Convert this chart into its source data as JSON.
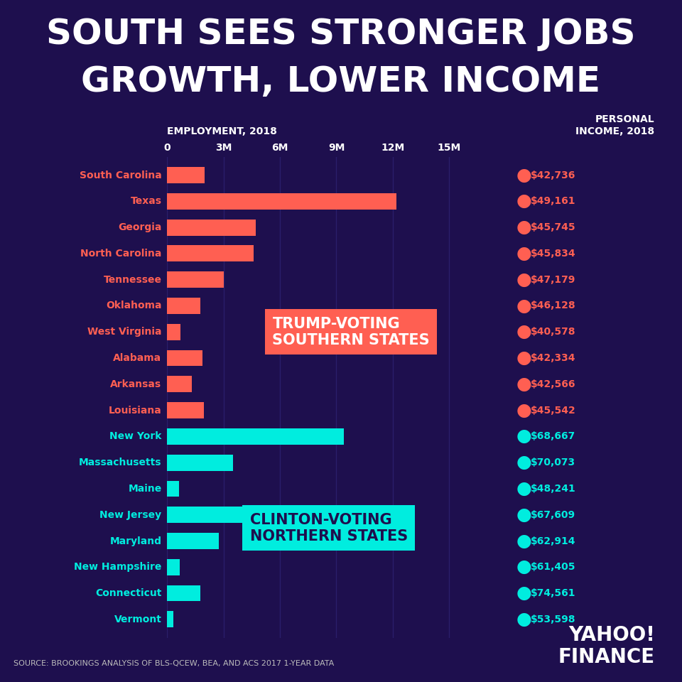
{
  "title_line1": "SOUTH SEES STRONGER JOBS",
  "title_line2": "GROWTH, LOWER INCOME",
  "employment_label": "EMPLOYMENT, 2018",
  "income_label": "PERSONAL\nINCOME, 2018",
  "source": "SOURCE: BROOKINGS ANALYSIS OF BLS-QCEW, BEA, AND ACS 2017 1-YEAR DATA",
  "states": [
    "South Carolina",
    "Texas",
    "Georgia",
    "North Carolina",
    "Tennessee",
    "Oklahoma",
    "West Virginia",
    "Alabama",
    "Arkansas",
    "Louisiana",
    "New York",
    "Massachusetts",
    "Maine",
    "New Jersey",
    "Maryland",
    "New Hampshire",
    "Connecticut",
    "Vermont"
  ],
  "employment": [
    2000000,
    12200000,
    4700000,
    4600000,
    3000000,
    1750000,
    700000,
    1900000,
    1300000,
    1950000,
    9400000,
    3500000,
    620000,
    4100000,
    2750000,
    680000,
    1750000,
    320000
  ],
  "income": [
    42736,
    49161,
    45745,
    45834,
    47179,
    46128,
    40578,
    42334,
    42566,
    45542,
    68667,
    70073,
    48241,
    67609,
    62914,
    61405,
    74561,
    53598
  ],
  "group": [
    "south",
    "south",
    "south",
    "south",
    "south",
    "south",
    "south",
    "south",
    "south",
    "south",
    "north",
    "north",
    "north",
    "north",
    "north",
    "north",
    "north",
    "north"
  ],
  "bar_color_south": "#FF5F52",
  "bar_color_north": "#00EDDF",
  "dot_color_south": "#FF5F52",
  "dot_color_north": "#00EDDF",
  "state_color_south": "#FF5F52",
  "state_color_north": "#00EDDF",
  "income_color_south": "#FF5F52",
  "income_color_north": "#00EDDF",
  "bg_color": "#1E0F4E",
  "title_color": "#FFFFFF",
  "axis_label_color": "#FFFFFF",
  "tick_color": "#FFFFFF",
  "grid_color": "#2A1E6A",
  "trump_label": "TRUMP-VOTING\nSOUTHERN STATES",
  "clinton_label": "CLINTON-VOTING\nNORTHERN STATES",
  "x_ticks": [
    0,
    3000000,
    6000000,
    9000000,
    12000000,
    15000000
  ],
  "x_tick_labels": [
    "0",
    "3M",
    "6M",
    "9M",
    "12M",
    "15M"
  ],
  "xlim": [
    0,
    16500000
  ]
}
